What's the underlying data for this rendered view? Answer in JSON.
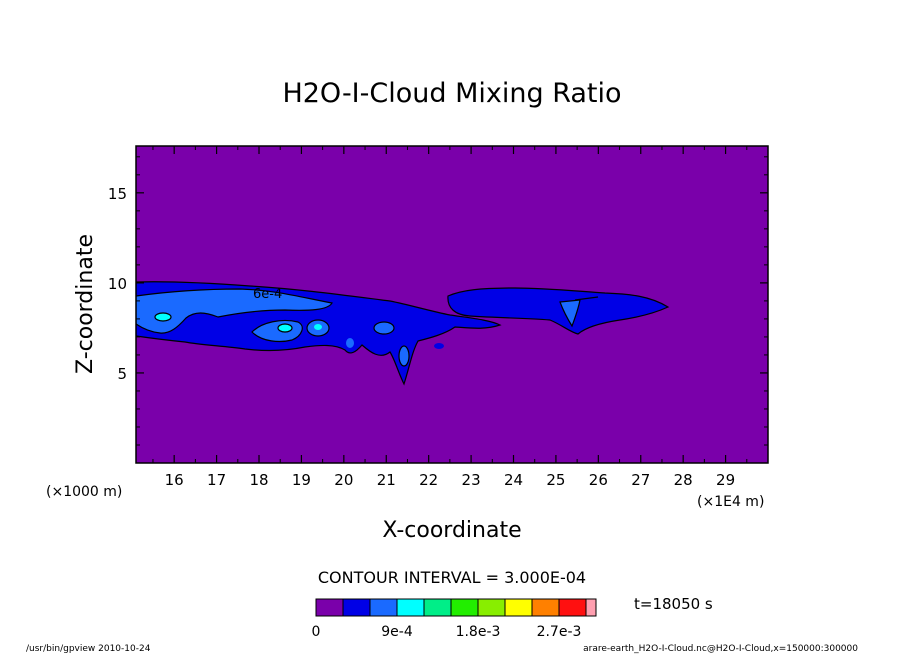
{
  "chart_data": {
    "type": "heatmap",
    "title": "H2O-I-Cloud Mixing Ratio",
    "xlabel": "X-coordinate",
    "ylabel": "Z-coordinate",
    "x_unit": "(×1E4 m)",
    "y_unit": "(×1000 m)",
    "xlim": [
      15.1,
      30.0
    ],
    "ylim": [
      0.0,
      17.6
    ],
    "x_ticks": [
      "16",
      "17",
      "18",
      "19",
      "20",
      "21",
      "22",
      "23",
      "24",
      "25",
      "26",
      "27",
      "28",
      "29"
    ],
    "y_ticks": [
      "5",
      "10",
      "15"
    ],
    "contour_interval_text": "CONTOUR INTERVAL = 3.000E-04",
    "time_text": "t=18050 s",
    "colorbar": {
      "colors": [
        "#7a00aa",
        "#0000e6",
        "#1a6aff",
        "#00ffff",
        "#00ee88",
        "#22ee00",
        "#88ee00",
        "#ffff00",
        "#ff8000",
        "#ff1010",
        "#ff9fb0"
      ],
      "labels": [
        "0",
        "9e-4",
        "1.8e-3",
        "2.7e-3"
      ]
    },
    "contour_label": "6e-4",
    "grid": false,
    "legend": "colorbar at bottom"
  },
  "footer": {
    "left": "/usr/bin/gpview  2010-10-24",
    "right": "arare-earth_H2O-I-Cloud.nc@H2O-I-Cloud,x=150000:300000"
  }
}
